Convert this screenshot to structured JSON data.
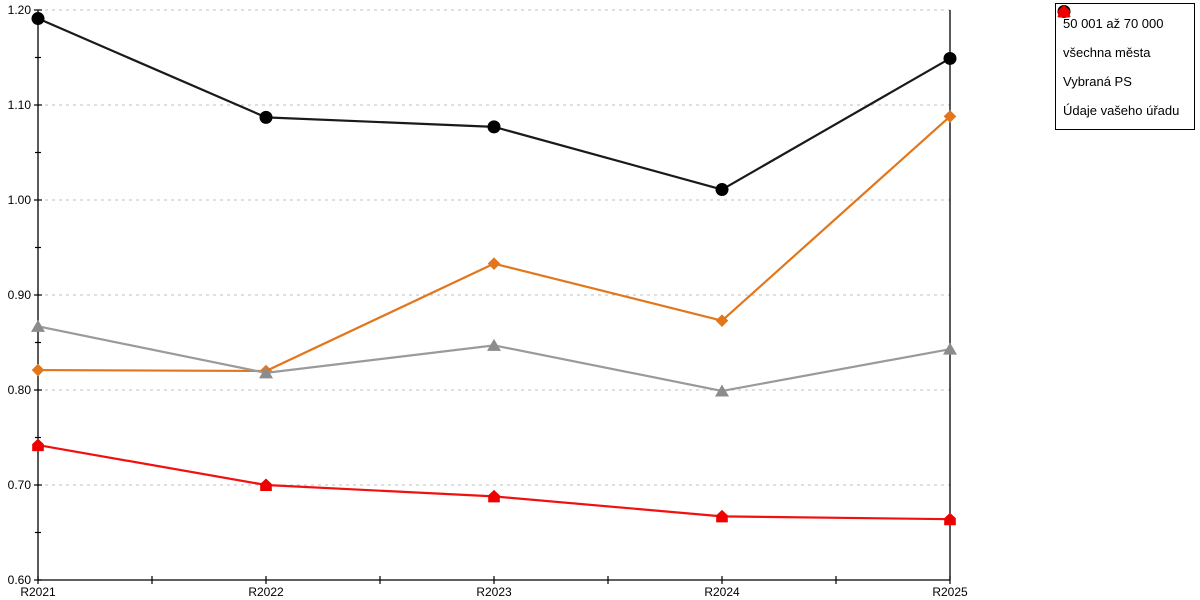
{
  "chart_data": {
    "type": "line",
    "title": "",
    "xlabel": "",
    "ylabel": "",
    "x_categories": [
      "R2021",
      "R2022",
      "R2023",
      "R2024",
      "R2025"
    ],
    "series": [
      {
        "name": "50 001 až 70 000",
        "marker": "diamond",
        "color": "#E2761B",
        "line_color": "#E2761B",
        "values": [
          0.821,
          0.82,
          0.933,
          0.873,
          1.088
        ]
      },
      {
        "name": "všechna města",
        "marker": "circle",
        "color": "#000000",
        "line_color": "#1A1A1A",
        "values": [
          1.191,
          1.087,
          1.077,
          1.011,
          1.149
        ]
      },
      {
        "name": "Vybraná PS",
        "marker": "triangle",
        "color": "#8C8C8C",
        "line_color": "#9A9A9A",
        "values": [
          0.867,
          0.818,
          0.847,
          0.799,
          0.843
        ]
      },
      {
        "name": "Údaje vašeho úřadu",
        "marker": "pentagon",
        "color": "#EE0000",
        "line_color": "#F11010",
        "values": [
          0.742,
          0.7,
          0.688,
          0.667,
          0.664
        ]
      }
    ],
    "ylim": [
      0.6,
      1.2
    ],
    "y_major_step": 0.1,
    "y_minor_step": 0.05,
    "y_tick_labels": [
      "0.60",
      "0.70",
      "0.80",
      "0.90",
      "1.00",
      "1.10",
      "1.20"
    ],
    "grid": "horizontal dashed at major ticks",
    "legend_position": "top-right",
    "axis_color": "#000000",
    "grid_color": "#BFBFBF",
    "background_color": "#FFFFFF"
  }
}
